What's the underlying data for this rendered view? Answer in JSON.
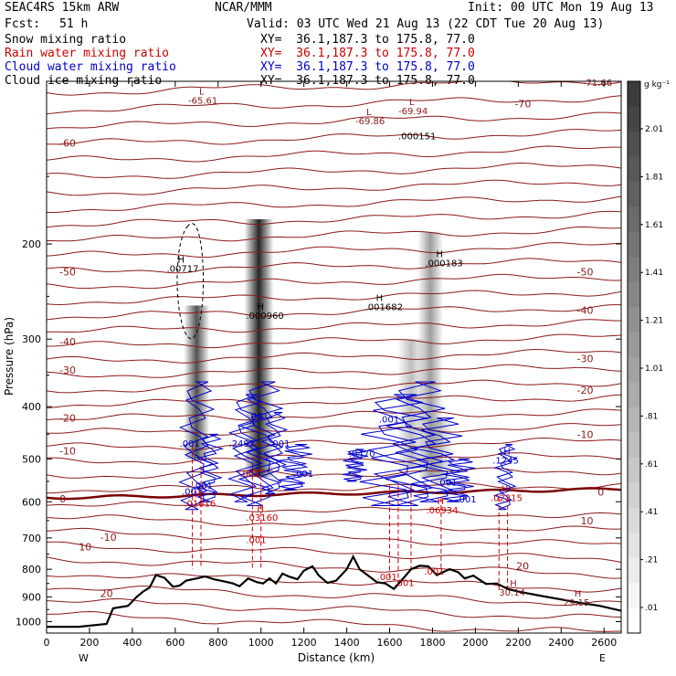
{
  "header": {
    "model": "SEAC4RS 15km ARW",
    "center": "NCAR/MMM",
    "init": "Init: 00 UTC Mon 19 Aug 13",
    "fcst_label": "Fcst:",
    "fcst_value": "51 h",
    "valid": "Valid: 03 UTC Wed 21 Aug 13 (22 CDT Tue 20 Aug 13)",
    "fields": [
      {
        "name": "Snow mixing ratio",
        "xy": "XY=  36.1,187.3 to 175.8, 77.0",
        "color": "#000000"
      },
      {
        "name": "Rain water mixing ratio",
        "xy": "XY=  36.1,187.3 to 175.8, 77.0",
        "color": "#cc0000"
      },
      {
        "name": "Cloud water mixing ratio",
        "xy": "XY=  36.1,187.3 to 175.8, 77.0",
        "color": "#0000cc"
      },
      {
        "name": "Cloud ice mixing ratio",
        "xy": "XY=  36.1,187.3 to 175.8, 77.0",
        "color": "#000000"
      }
    ]
  },
  "chart_data": {
    "type": "cross-section",
    "xlabel": "Distance (km)",
    "ylabel": "Pressure (hPa)",
    "xlim": [
      0,
      2680
    ],
    "ylim": [
      1050,
      100
    ],
    "x_ticks": [
      "0",
      "200",
      "400",
      "600",
      "800",
      "1000",
      "1200",
      "1400",
      "1600",
      "1800",
      "2000",
      "2200",
      "2400",
      "2600"
    ],
    "y_ticks": [
      "200",
      "300",
      "400",
      "500",
      "600",
      "700",
      "800",
      "900",
      "1000"
    ],
    "x_end_labels": {
      "left": "W",
      "right": "E"
    },
    "colorbar": {
      "unit": "g kg⁻¹",
      "labels": [
        "2.01",
        "1.81",
        "1.61",
        "1.41",
        "1.21",
        "1.01",
        ".81",
        ".61",
        ".41",
        ".21",
        ".01"
      ]
    },
    "temperature_labels": [
      {
        "text": "-60",
        "x": 60,
        "p": 130,
        "side": "left"
      },
      {
        "text": "-50",
        "x": 60,
        "p": 225,
        "side": "left"
      },
      {
        "text": "-40",
        "x": 60,
        "p": 303,
        "side": "left"
      },
      {
        "text": "-30",
        "x": 60,
        "p": 342,
        "side": "left"
      },
      {
        "text": "-20",
        "x": 60,
        "p": 420,
        "side": "left"
      },
      {
        "text": "-10",
        "x": 60,
        "p": 483,
        "side": "left"
      },
      {
        "text": "0",
        "x": 60,
        "p": 592,
        "side": "left"
      },
      {
        "text": "10",
        "x": 150,
        "p": 727,
        "side": "left"
      },
      {
        "text": "-10",
        "x": 250,
        "p": 698,
        "side": "left"
      },
      {
        "text": "20",
        "x": 250,
        "p": 887,
        "side": "left"
      },
      {
        "text": "-70",
        "x": 2260,
        "p": 110,
        "side": "right"
      },
      {
        "text": "-50",
        "x": 2550,
        "p": 225,
        "side": "right"
      },
      {
        "text": "-40",
        "x": 2550,
        "p": 265,
        "side": "right"
      },
      {
        "text": "-30",
        "x": 2550,
        "p": 326,
        "side": "right"
      },
      {
        "text": "-20",
        "x": 2550,
        "p": 373,
        "side": "right"
      },
      {
        "text": "-10",
        "x": 2550,
        "p": 450,
        "side": "right"
      },
      {
        "text": "0",
        "x": 2600,
        "p": 575,
        "side": "right"
      },
      {
        "text": "10",
        "x": 2550,
        "p": 650,
        "side": "right"
      },
      {
        "text": "20",
        "x": 2250,
        "p": 789,
        "side": "right"
      }
    ],
    "annotations": [
      {
        "mark": "H",
        "text": ".00717",
        "x": 620,
        "p": 225,
        "color": "#000000"
      },
      {
        "mark": "H",
        "text": ".000960",
        "x": 990,
        "p": 275,
        "color": "#000000"
      },
      {
        "mark": "H",
        "text": ".001682",
        "x": 1545,
        "p": 265,
        "color": "#000000"
      },
      {
        "mark": "H",
        "text": ".000183",
        "x": 1825,
        "p": 220,
        "color": "#000000"
      },
      {
        "mark": "L",
        "text": "-65.61",
        "x": 720,
        "p": 110,
        "color": "#8b1a1a"
      },
      {
        "mark": "L",
        "text": "-69.86",
        "x": 1500,
        "p": 120,
        "color": "#8b1a1a"
      },
      {
        "mark": "L",
        "text": "-69.94",
        "x": 1700,
        "p": 115,
        "color": "#8b1a1a"
      },
      {
        "mark": "",
        "text": ".000151",
        "x": 1700,
        "p": 128,
        "color": "#000000"
      },
      {
        "mark": "",
        "text": "-71.66",
        "x": 2560,
        "p": 102,
        "color": "#8b1a1a"
      },
      {
        "mark": "",
        "text": ".001",
        "x": 680,
        "p": 475,
        "color": "#0000cc"
      },
      {
        "mark": "",
        "text": ".001",
        "x": 1000,
        "p": 422,
        "color": "#0000cc"
      },
      {
        "mark": "",
        "text": ".2492",
        "x": 910,
        "p": 475,
        "color": "#0000cc"
      },
      {
        "mark": "",
        "text": ".001",
        "x": 1100,
        "p": 475,
        "color": "#0000cc"
      },
      {
        "mark": "",
        "text": ".001",
        "x": 1210,
        "p": 540,
        "color": "#0000cc"
      },
      {
        "mark": "",
        "text": ".001",
        "x": 740,
        "p": 568,
        "color": "#0000cc"
      },
      {
        "mark": "",
        "text": ".001",
        "x": 690,
        "p": 582,
        "color": "#0000cc"
      },
      {
        "mark": "",
        "text": ".001",
        "x": 1610,
        "p": 428,
        "color": "#0000cc"
      },
      {
        "mark": "",
        "text": ".0470",
        "x": 1470,
        "p": 495,
        "color": "#0000cc"
      },
      {
        "mark": "",
        "text": ".001",
        "x": 1880,
        "p": 560,
        "color": "#0000cc"
      },
      {
        "mark": "",
        "text": ".001",
        "x": 1970,
        "p": 602,
        "color": "#0000cc"
      },
      {
        "mark": "H",
        "text": ".1245",
        "x": 2140,
        "p": 510,
        "color": "#0000cc"
      },
      {
        "mark": "",
        "text": ".001",
        "x": 960,
        "p": 540,
        "color": "#cc0000"
      },
      {
        "mark": "H",
        "text": ".01616",
        "x": 700,
        "p": 612,
        "color": "#cc0000"
      },
      {
        "mark": "H",
        "text": ".03160",
        "x": 990,
        "p": 650,
        "color": "#cc0000"
      },
      {
        "mark": "",
        "text": ".001",
        "x": 990,
        "p": 715,
        "color": "#cc0000"
      },
      {
        "mark": "H",
        "text": ".06934",
        "x": 1830,
        "p": 630,
        "color": "#cc0000"
      },
      {
        "mark": "H",
        "text": ".02315",
        "x": 2130,
        "p": 598,
        "color": "#cc0000"
      },
      {
        "mark": "",
        "text": ".001",
        "x": 1600,
        "p": 838,
        "color": "#cc0000"
      },
      {
        "mark": "",
        "text": ".001",
        "x": 1680,
        "p": 860,
        "color": "#cc0000"
      },
      {
        "mark": "",
        "text": ".001",
        "x": 1820,
        "p": 818,
        "color": "#cc0000"
      },
      {
        "mark": "H",
        "text": "30.14",
        "x": 2170,
        "p": 895,
        "color": "#8b1a1a"
      },
      {
        "mark": "H",
        "text": "29.15",
        "x": 2470,
        "p": 935,
        "color": "#8b1a1a"
      }
    ],
    "snow_columns": [
      {
        "x": 700,
        "p_top": 260,
        "p_bot": 500,
        "width": 28,
        "max": 0.8
      },
      {
        "x": 990,
        "p_top": 180,
        "p_bot": 540,
        "width": 32,
        "max": 1.0
      },
      {
        "x": 1700,
        "p_top": 300,
        "p_bot": 520,
        "width": 30,
        "max": 0.3
      },
      {
        "x": 1790,
        "p_top": 190,
        "p_bot": 540,
        "width": 28,
        "max": 0.45
      },
      {
        "x": 1840,
        "p_top": 420,
        "p_bot": 560,
        "width": 28,
        "max": 0.25
      }
    ],
    "terrain": [
      [
        0,
        1022
      ],
      [
        150,
        1022
      ],
      [
        280,
        1010
      ],
      [
        310,
        945
      ],
      [
        380,
        935
      ],
      [
        420,
        900
      ],
      [
        450,
        880
      ],
      [
        480,
        865
      ],
      [
        510,
        820
      ],
      [
        550,
        830
      ],
      [
        590,
        862
      ],
      [
        620,
        858
      ],
      [
        650,
        840
      ],
      [
        700,
        832
      ],
      [
        740,
        825
      ],
      [
        780,
        835
      ],
      [
        830,
        843
      ],
      [
        870,
        850
      ],
      [
        900,
        860
      ],
      [
        940,
        832
      ],
      [
        980,
        845
      ],
      [
        1010,
        850
      ],
      [
        1040,
        832
      ],
      [
        1070,
        850
      ],
      [
        1100,
        815
      ],
      [
        1130,
        825
      ],
      [
        1170,
        835
      ],
      [
        1200,
        805
      ],
      [
        1240,
        790
      ],
      [
        1270,
        822
      ],
      [
        1310,
        848
      ],
      [
        1350,
        840
      ],
      [
        1400,
        800
      ],
      [
        1430,
        758
      ],
      [
        1460,
        800
      ],
      [
        1500,
        822
      ],
      [
        1540,
        845
      ],
      [
        1580,
        850
      ],
      [
        1620,
        870
      ],
      [
        1660,
        835
      ],
      [
        1700,
        800
      ],
      [
        1740,
        788
      ],
      [
        1780,
        790
      ],
      [
        1820,
        820
      ],
      [
        1850,
        810
      ],
      [
        1880,
        800
      ],
      [
        1920,
        810
      ],
      [
        1950,
        832
      ],
      [
        1990,
        822
      ],
      [
        2050,
        852
      ],
      [
        2100,
        850
      ],
      [
        2150,
        870
      ],
      [
        2200,
        880
      ],
      [
        2300,
        895
      ],
      [
        2400,
        910
      ],
      [
        2500,
        925
      ],
      [
        2580,
        935
      ],
      [
        2680,
        955
      ]
    ]
  }
}
